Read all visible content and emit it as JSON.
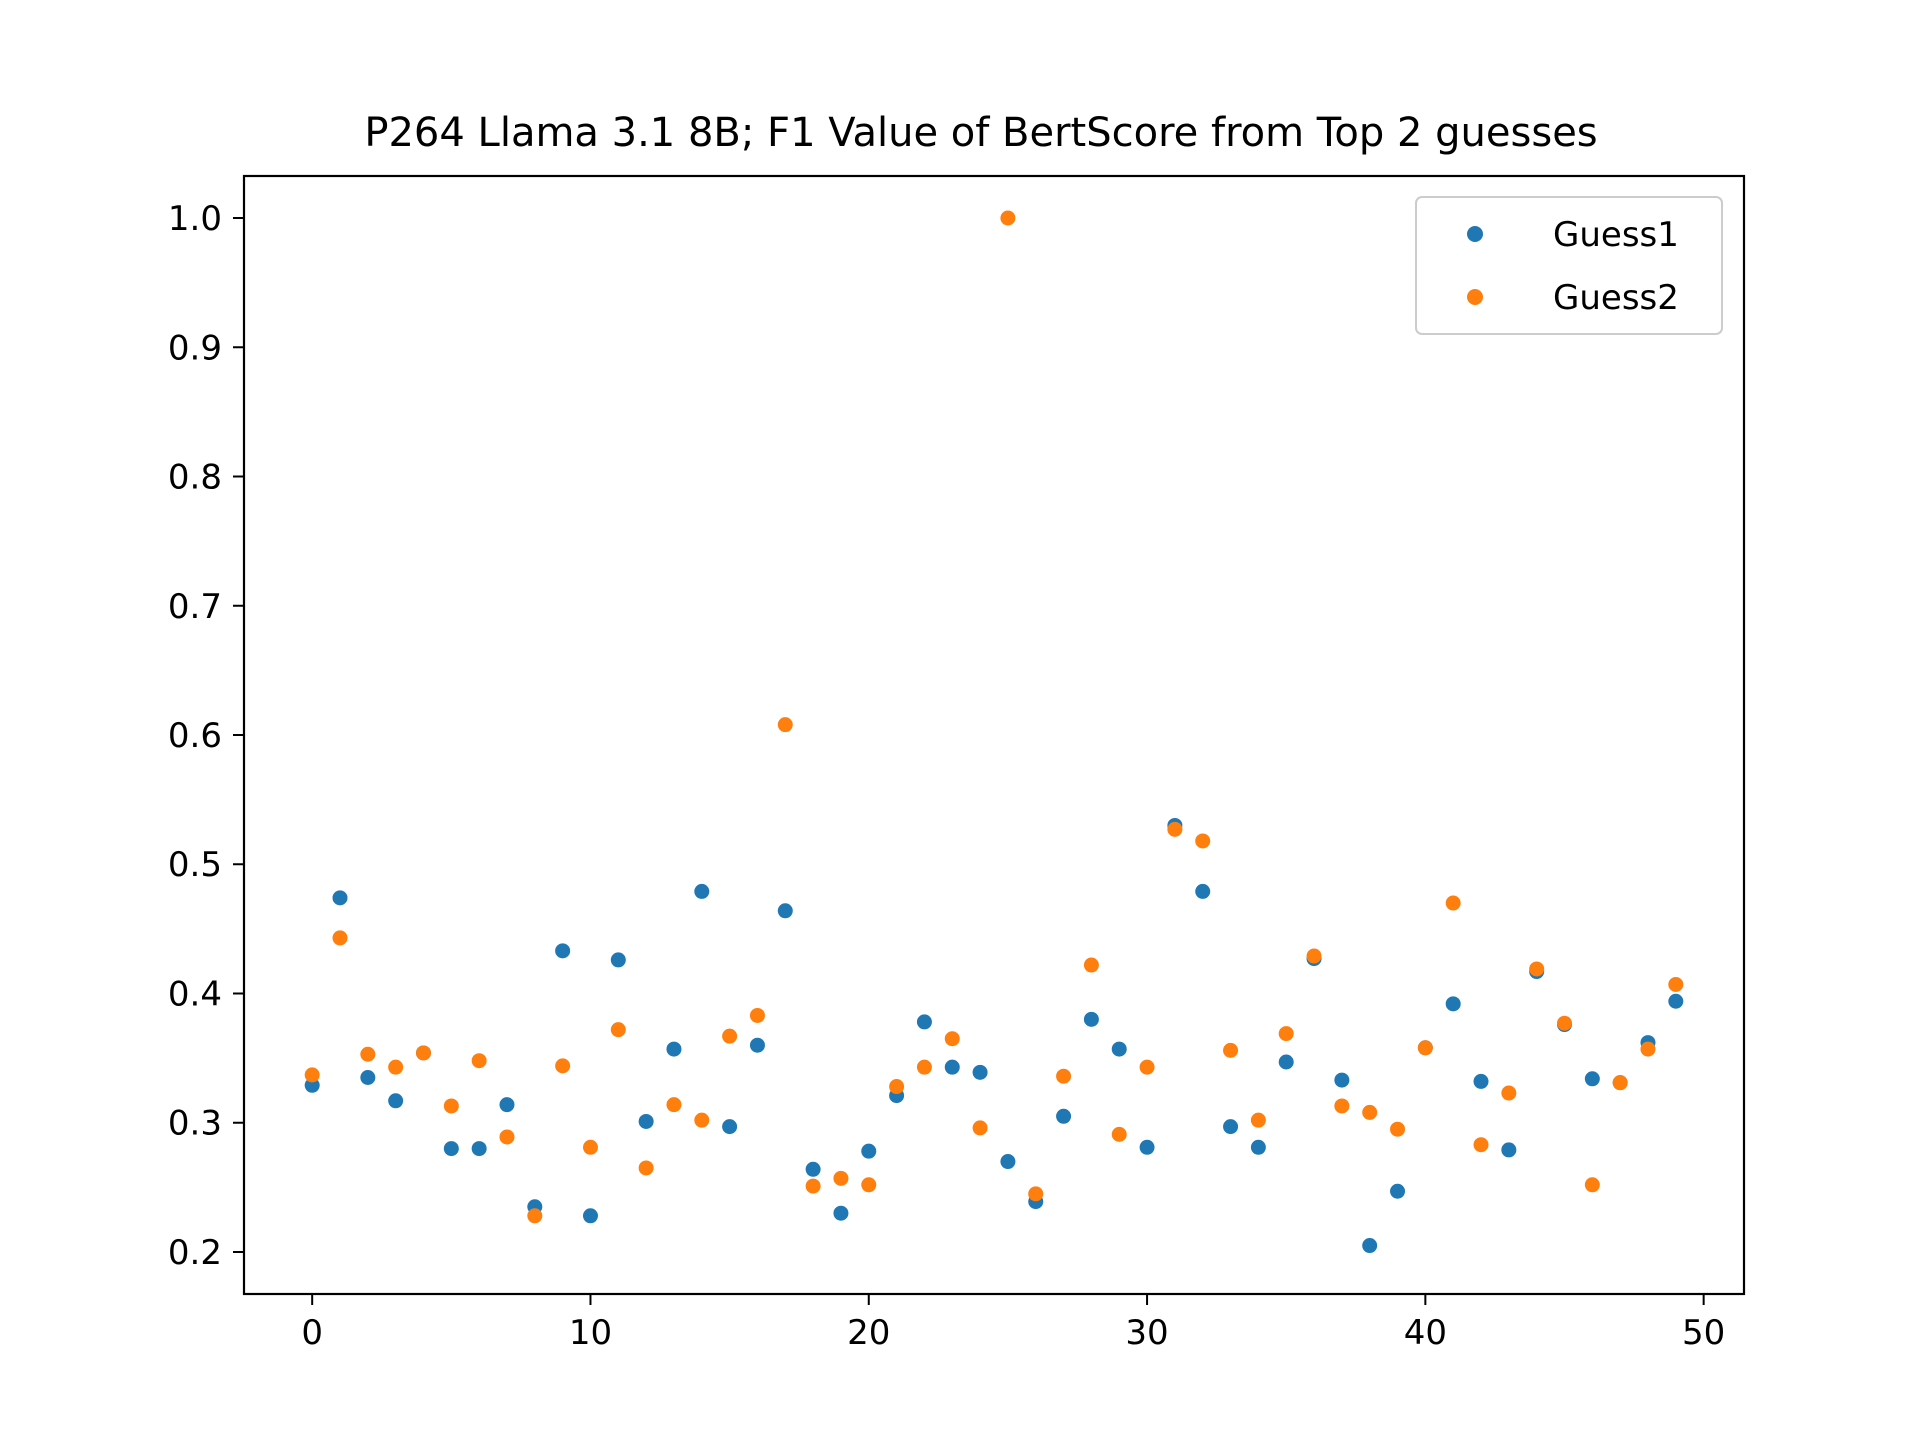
{
  "colors": {
    "guess1": "#1f77b4",
    "guess2": "#ff7f0e"
  },
  "chart_data": {
    "type": "scatter",
    "title": "P264 Llama 3.1 8B; F1 Value of BertScore from Top 2 guesses",
    "xlabel": "",
    "ylabel": "",
    "xlim": [
      -2.45,
      51.45
    ],
    "ylim": [
      0.1675,
      1.0325
    ],
    "xticks": [
      0,
      10,
      20,
      30,
      40,
      50
    ],
    "yticks": [
      0.2,
      0.3,
      0.4,
      0.5,
      0.6,
      0.7,
      0.8,
      0.9,
      1.0
    ],
    "xtick_labels": [
      "0",
      "10",
      "20",
      "30",
      "40",
      "50"
    ],
    "ytick_labels": [
      "0.2",
      "0.3",
      "0.4",
      "0.5",
      "0.6",
      "0.7",
      "0.8",
      "0.9",
      "1.0"
    ],
    "grid": false,
    "legend_position": "top-right",
    "x": [
      0,
      1,
      2,
      3,
      4,
      5,
      6,
      7,
      8,
      9,
      10,
      11,
      12,
      13,
      14,
      15,
      16,
      17,
      18,
      19,
      20,
      21,
      22,
      23,
      24,
      25,
      26,
      27,
      28,
      29,
      30,
      31,
      32,
      33,
      34,
      35,
      36,
      37,
      38,
      39,
      40,
      41,
      42,
      43,
      44,
      45,
      46,
      47,
      48,
      49
    ],
    "series": [
      {
        "name": "Guess1",
        "values": [
          0.329,
          0.474,
          0.335,
          0.317,
          0.354,
          0.28,
          0.28,
          0.314,
          0.235,
          0.433,
          0.228,
          0.426,
          0.301,
          0.357,
          0.479,
          0.297,
          0.36,
          0.464,
          0.264,
          0.23,
          0.278,
          0.321,
          0.378,
          0.343,
          0.339,
          0.27,
          0.239,
          0.305,
          0.38,
          0.357,
          0.281,
          0.53,
          0.479,
          0.297,
          0.281,
          0.347,
          0.427,
          0.333,
          0.205,
          0.247,
          0.358,
          0.392,
          0.332,
          0.279,
          0.417,
          0.376,
          0.334,
          0.331,
          0.362,
          0.394
        ]
      },
      {
        "name": "Guess2",
        "values": [
          0.337,
          0.443,
          0.353,
          0.343,
          0.354,
          0.313,
          0.348,
          0.289,
          0.228,
          0.344,
          0.281,
          0.372,
          0.265,
          0.314,
          0.302,
          0.367,
          0.383,
          0.608,
          0.251,
          0.257,
          0.252,
          0.328,
          0.343,
          0.365,
          0.296,
          1.0,
          0.245,
          0.336,
          0.422,
          0.291,
          0.343,
          0.527,
          0.518,
          0.356,
          0.302,
          0.369,
          0.429,
          0.313,
          0.308,
          0.295,
          0.358,
          0.47,
          0.283,
          0.323,
          0.419,
          0.377,
          0.252,
          0.331,
          0.357,
          0.407
        ]
      }
    ]
  }
}
